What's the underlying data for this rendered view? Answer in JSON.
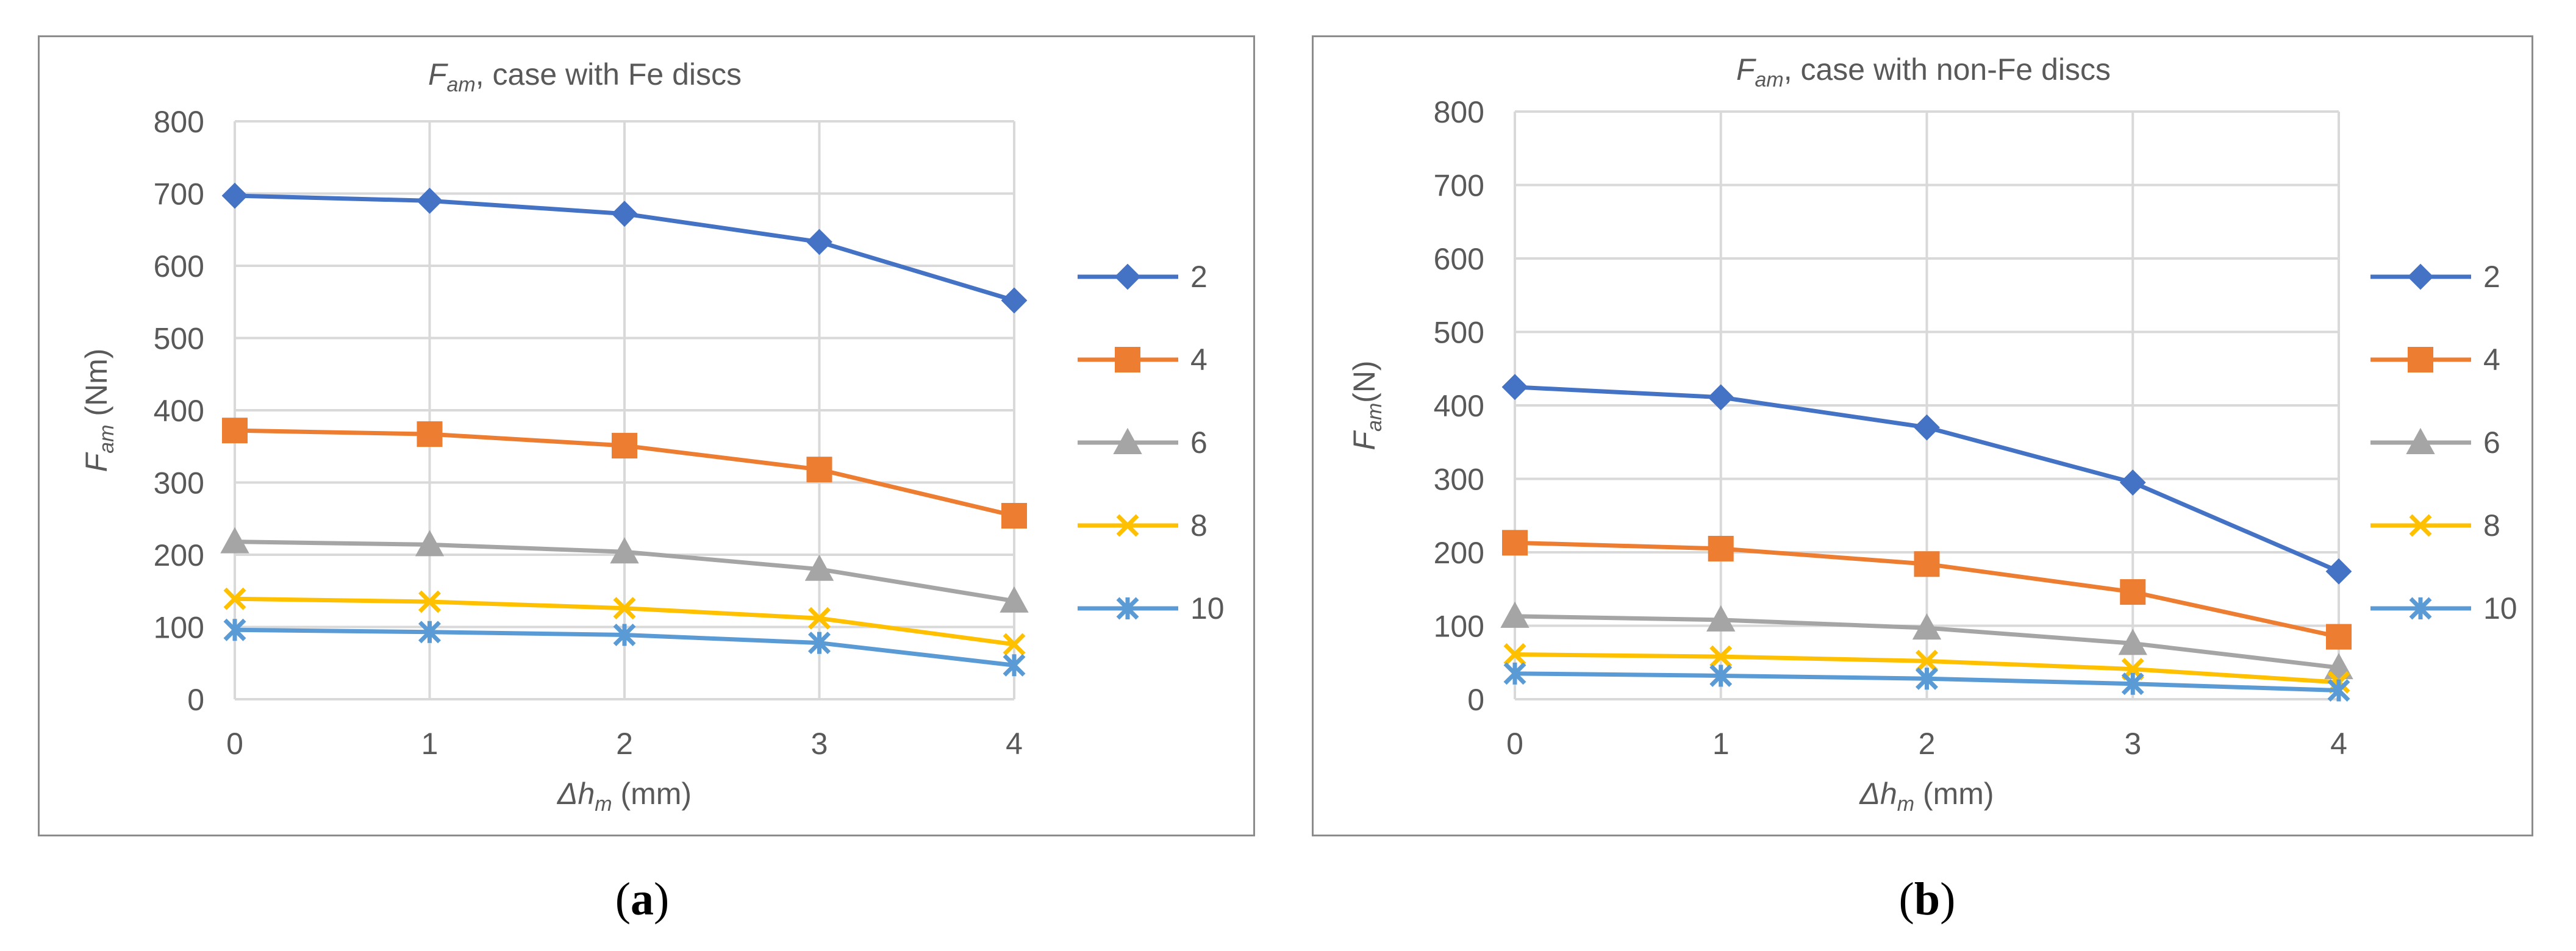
{
  "chart_data": [
    {
      "type": "line",
      "title_symbol": "F",
      "title_subscript": "am",
      "title_rest": ", case with Fe discs",
      "ylabel_symbol": "F",
      "ylabel_subscript": "am",
      "ylabel_rest": " (Nm)",
      "xlabel_symbol": "Δh",
      "xlabel_subscript": "m",
      "xlabel_rest": " (mm)",
      "x": [
        0,
        1,
        2,
        3,
        4
      ],
      "ylim": [
        0,
        800
      ],
      "yticks": [
        0,
        100,
        200,
        300,
        400,
        500,
        600,
        700,
        800
      ],
      "grid": true,
      "legend_position": "right",
      "series": [
        {
          "name": "2",
          "values": [
            697,
            690,
            672,
            633,
            552
          ],
          "color": "#4472C4",
          "marker": "diamond"
        },
        {
          "name": "4",
          "values": [
            372,
            367,
            351,
            318,
            254
          ],
          "color": "#ED7D31",
          "marker": "square"
        },
        {
          "name": "6",
          "values": [
            218,
            214,
            204,
            180,
            136
          ],
          "color": "#A5A5A5",
          "marker": "triangle"
        },
        {
          "name": "8",
          "values": [
            139,
            135,
            126,
            112,
            76
          ],
          "color": "#FFC000",
          "marker": "x"
        },
        {
          "name": "10",
          "values": [
            96,
            93,
            89,
            78,
            47
          ],
          "color": "#5B9BD5",
          "marker": "asterisk"
        }
      ]
    },
    {
      "type": "line",
      "title_symbol": "F",
      "title_subscript": "am",
      "title_rest": ", case with non-Fe discs",
      "ylabel_symbol": "F",
      "ylabel_subscript": "am",
      "ylabel_rest": "(N)",
      "xlabel_symbol": "Δh",
      "xlabel_subscript": "m",
      "xlabel_rest": " (mm)",
      "x": [
        0,
        1,
        2,
        3,
        4
      ],
      "ylim": [
        0,
        800
      ],
      "yticks": [
        0,
        100,
        200,
        300,
        400,
        500,
        600,
        700,
        800
      ],
      "grid": true,
      "legend_position": "right",
      "series": [
        {
          "name": "2",
          "values": [
            425,
            411,
            370,
            295,
            174
          ],
          "color": "#4472C4",
          "marker": "diamond"
        },
        {
          "name": "4",
          "values": [
            213,
            205,
            184,
            146,
            85
          ],
          "color": "#ED7D31",
          "marker": "square"
        },
        {
          "name": "6",
          "values": [
            113,
            108,
            97,
            76,
            43
          ],
          "color": "#A5A5A5",
          "marker": "triangle"
        },
        {
          "name": "8",
          "values": [
            61,
            58,
            52,
            41,
            23
          ],
          "color": "#FFC000",
          "marker": "x"
        },
        {
          "name": "10",
          "values": [
            35,
            32,
            28,
            21,
            12
          ],
          "color": "#5B9BD5",
          "marker": "asterisk"
        }
      ]
    }
  ],
  "subfigure_labels": [
    {
      "open": "(",
      "letter": "a",
      "close": ")"
    },
    {
      "open": "(",
      "letter": "b",
      "close": ")"
    }
  ]
}
